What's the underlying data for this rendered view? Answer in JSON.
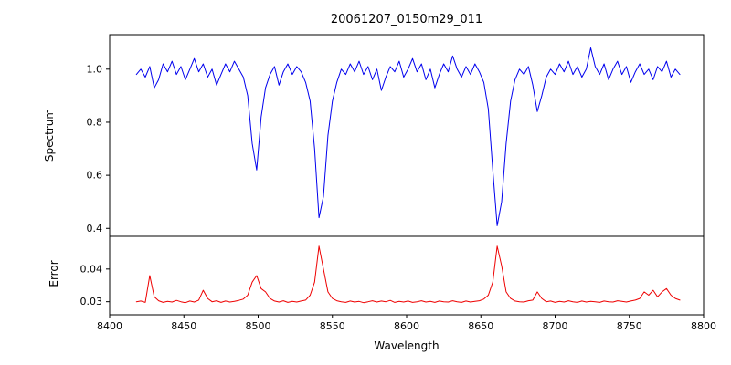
{
  "figure": {
    "background": "#ffffff",
    "spine_color": "#000000"
  },
  "chart_data": {
    "type": "line",
    "title": "20061207_0150m29_011",
    "xlabel": "Wavelength",
    "xlim": [
      8400,
      8800
    ],
    "xticks": [
      "8400",
      "8450",
      "8500",
      "8550",
      "8600",
      "8650",
      "8700",
      "8750",
      "8800"
    ],
    "x": [
      8418,
      8421,
      8424,
      8427,
      8430,
      8433,
      8436,
      8439,
      8442,
      8445,
      8448,
      8451,
      8454,
      8457,
      8460,
      8463,
      8466,
      8469,
      8472,
      8475,
      8478,
      8481,
      8484,
      8487,
      8490,
      8493,
      8496,
      8499,
      8502,
      8505,
      8508,
      8511,
      8514,
      8517,
      8520,
      8523,
      8526,
      8529,
      8532,
      8535,
      8538,
      8541,
      8544,
      8547,
      8550,
      8553,
      8556,
      8559,
      8562,
      8565,
      8568,
      8571,
      8574,
      8577,
      8580,
      8583,
      8586,
      8589,
      8592,
      8595,
      8598,
      8601,
      8604,
      8607,
      8610,
      8613,
      8616,
      8619,
      8622,
      8625,
      8628,
      8631,
      8634,
      8637,
      8640,
      8643,
      8646,
      8649,
      8652,
      8655,
      8658,
      8661,
      8664,
      8667,
      8670,
      8673,
      8676,
      8679,
      8682,
      8685,
      8688,
      8691,
      8694,
      8697,
      8700,
      8703,
      8706,
      8709,
      8712,
      8715,
      8718,
      8721,
      8724,
      8727,
      8730,
      8733,
      8736,
      8739,
      8742,
      8745,
      8748,
      8751,
      8754,
      8757,
      8760,
      8763,
      8766,
      8769,
      8772,
      8775,
      8778,
      8781,
      8784
    ],
    "panels": [
      {
        "name": "spectrum",
        "ylabel": "Spectrum",
        "color": "#0000ee",
        "ylim": [
          0.37,
          1.13
        ],
        "yticks": [
          "0.4",
          "0.6",
          "0.8",
          "1.0"
        ],
        "absorption_line_centers": [
          8499,
          8541,
          8661
        ],
        "values": [
          0.98,
          1.0,
          0.97,
          1.01,
          0.93,
          0.96,
          1.02,
          0.99,
          1.03,
          0.98,
          1.01,
          0.96,
          1.0,
          1.04,
          0.99,
          1.02,
          0.97,
          1.0,
          0.94,
          0.98,
          1.02,
          0.99,
          1.03,
          1.0,
          0.97,
          0.9,
          0.72,
          0.62,
          0.82,
          0.93,
          0.98,
          1.01,
          0.94,
          0.99,
          1.02,
          0.98,
          1.01,
          0.99,
          0.95,
          0.88,
          0.7,
          0.44,
          0.52,
          0.75,
          0.88,
          0.95,
          1.0,
          0.98,
          1.02,
          0.99,
          1.03,
          0.98,
          1.01,
          0.96,
          1.0,
          0.92,
          0.97,
          1.01,
          0.99,
          1.03,
          0.97,
          1.0,
          1.04,
          0.99,
          1.02,
          0.96,
          1.0,
          0.93,
          0.98,
          1.02,
          0.99,
          1.05,
          1.0,
          0.97,
          1.01,
          0.98,
          1.02,
          0.99,
          0.95,
          0.85,
          0.62,
          0.41,
          0.5,
          0.72,
          0.88,
          0.96,
          1.0,
          0.98,
          1.01,
          0.94,
          0.84,
          0.9,
          0.97,
          1.0,
          0.98,
          1.02,
          0.99,
          1.03,
          0.98,
          1.01,
          0.97,
          1.0,
          1.08,
          1.01,
          0.98,
          1.02,
          0.96,
          1.0,
          1.03,
          0.98,
          1.01,
          0.95,
          0.99,
          1.02,
          0.98,
          1.0,
          0.96,
          1.01,
          0.99,
          1.03,
          0.97,
          1.0,
          0.98
        ]
      },
      {
        "name": "error",
        "ylabel": "Error",
        "color": "#ee0000",
        "ylim": [
          0.026,
          0.05
        ],
        "yticks": [
          "0.03",
          "0.04"
        ],
        "peak_centers": [
          8427,
          8499,
          8541,
          8661
        ],
        "values": [
          0.03,
          0.0302,
          0.0298,
          0.038,
          0.0315,
          0.0303,
          0.0298,
          0.0301,
          0.0299,
          0.0304,
          0.03,
          0.0297,
          0.0302,
          0.0299,
          0.0305,
          0.0335,
          0.031,
          0.03,
          0.0303,
          0.0298,
          0.0302,
          0.0299,
          0.0301,
          0.0304,
          0.0308,
          0.032,
          0.036,
          0.038,
          0.034,
          0.033,
          0.031,
          0.0302,
          0.0299,
          0.0303,
          0.0298,
          0.0301,
          0.0299,
          0.0302,
          0.0305,
          0.032,
          0.036,
          0.047,
          0.04,
          0.033,
          0.031,
          0.0303,
          0.03,
          0.0298,
          0.0302,
          0.0299,
          0.0301,
          0.0297,
          0.03,
          0.0303,
          0.0299,
          0.0302,
          0.03,
          0.0304,
          0.0298,
          0.0301,
          0.0299,
          0.0302,
          0.0298,
          0.03,
          0.0303,
          0.0299,
          0.0301,
          0.0298,
          0.0302,
          0.03,
          0.0299,
          0.0303,
          0.03,
          0.0298,
          0.0302,
          0.0299,
          0.0301,
          0.0303,
          0.0308,
          0.032,
          0.036,
          0.047,
          0.041,
          0.033,
          0.031,
          0.0302,
          0.03,
          0.0299,
          0.0303,
          0.0305,
          0.033,
          0.031,
          0.03,
          0.0302,
          0.0298,
          0.0301,
          0.0299,
          0.0303,
          0.03,
          0.0298,
          0.0302,
          0.0299,
          0.0301,
          0.03,
          0.0298,
          0.0302,
          0.03,
          0.0299,
          0.0303,
          0.0301,
          0.0299,
          0.0302,
          0.0305,
          0.031,
          0.033,
          0.032,
          0.0335,
          0.0315,
          0.033,
          0.034,
          0.032,
          0.031,
          0.0305
        ]
      }
    ]
  }
}
